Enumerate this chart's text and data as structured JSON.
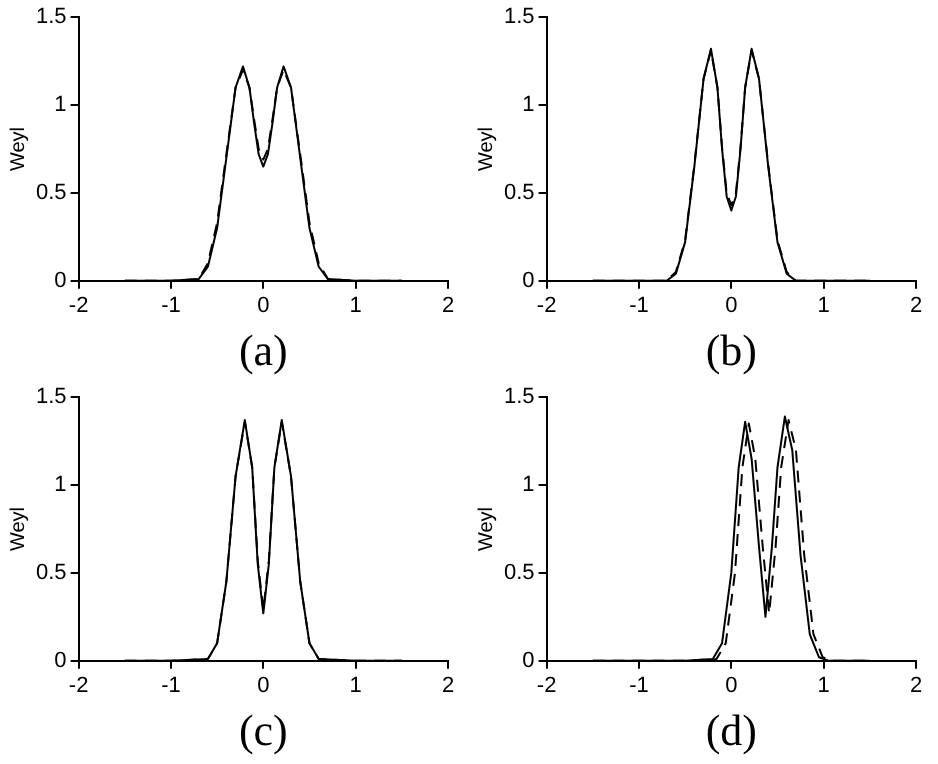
{
  "chart_data": [
    {
      "type": "line",
      "xlabel": "(a)",
      "ylabel": "Weyl",
      "xlim": [
        -2,
        2
      ],
      "ylim": [
        0,
        1.5
      ],
      "xticks": [
        -2,
        -1,
        0,
        1,
        2
      ],
      "yticks": [
        0,
        0.5,
        1,
        1.5
      ],
      "grid": false,
      "legend": false,
      "marker": "none",
      "series": [
        {
          "color": "#000000",
          "line_style": "solid",
          "x": [
            -1.5,
            -1,
            -0.7,
            -0.6,
            -0.5,
            -0.4,
            -0.3,
            -0.22,
            -0.15,
            -0.1,
            -0.05,
            0,
            0.05,
            0.1,
            0.15,
            0.22,
            0.3,
            0.4,
            0.5,
            0.6,
            0.7,
            1,
            1.5
          ],
          "values": [
            0,
            0,
            0.01,
            0.08,
            0.3,
            0.7,
            1.1,
            1.22,
            1.1,
            0.9,
            0.72,
            0.65,
            0.72,
            0.9,
            1.1,
            1.22,
            1.1,
            0.7,
            0.3,
            0.08,
            0.01,
            0,
            0
          ]
        },
        {
          "color": "#000000",
          "line_style": "dashed",
          "x": [
            -1.5,
            -1,
            -0.7,
            -0.6,
            -0.5,
            -0.4,
            -0.3,
            -0.22,
            -0.15,
            -0.1,
            -0.05,
            0,
            0.05,
            0.1,
            0.15,
            0.22,
            0.3,
            0.4,
            0.5,
            0.6,
            0.7,
            1,
            1.5
          ],
          "values": [
            0,
            0,
            0.01,
            0.1,
            0.33,
            0.72,
            1.1,
            1.2,
            1.1,
            0.92,
            0.75,
            0.69,
            0.75,
            0.92,
            1.1,
            1.2,
            1.1,
            0.72,
            0.33,
            0.1,
            0.01,
            0,
            0
          ]
        }
      ]
    },
    {
      "type": "line",
      "xlabel": "(b)",
      "ylabel": "Weyl",
      "xlim": [
        -2,
        2
      ],
      "ylim": [
        0,
        1.5
      ],
      "xticks": [
        -2,
        -1,
        0,
        1,
        2
      ],
      "yticks": [
        0,
        0.5,
        1,
        1.5
      ],
      "grid": false,
      "legend": false,
      "marker": "none",
      "series": [
        {
          "color": "#000000",
          "line_style": "solid",
          "x": [
            -1.5,
            -1,
            -0.7,
            -0.6,
            -0.5,
            -0.4,
            -0.3,
            -0.22,
            -0.15,
            -0.1,
            -0.05,
            0,
            0.05,
            0.1,
            0.15,
            0.22,
            0.3,
            0.4,
            0.5,
            0.6,
            0.7,
            1,
            1.5
          ],
          "values": [
            0,
            0,
            0,
            0.04,
            0.22,
            0.65,
            1.15,
            1.32,
            1.1,
            0.75,
            0.48,
            0.4,
            0.48,
            0.75,
            1.1,
            1.32,
            1.15,
            0.65,
            0.22,
            0.04,
            0,
            0,
            0
          ]
        },
        {
          "color": "#000000",
          "line_style": "dashed",
          "x": [
            -1.5,
            -1,
            -0.7,
            -0.6,
            -0.5,
            -0.4,
            -0.3,
            -0.22,
            -0.15,
            -0.1,
            -0.05,
            0,
            0.05,
            0.1,
            0.15,
            0.22,
            0.3,
            0.4,
            0.5,
            0.6,
            0.7,
            1,
            1.5
          ],
          "values": [
            0,
            0,
            0,
            0.05,
            0.23,
            0.66,
            1.15,
            1.31,
            1.1,
            0.76,
            0.5,
            0.43,
            0.5,
            0.76,
            1.1,
            1.31,
            1.15,
            0.66,
            0.23,
            0.05,
            0,
            0,
            0
          ]
        }
      ]
    },
    {
      "type": "line",
      "xlabel": "(c)",
      "ylabel": "Weyl",
      "xlim": [
        -2,
        2
      ],
      "ylim": [
        0,
        1.5
      ],
      "xticks": [
        -2,
        -1,
        0,
        1,
        2
      ],
      "yticks": [
        0,
        0.5,
        1,
        1.5
      ],
      "grid": false,
      "legend": false,
      "marker": "none",
      "series": [
        {
          "color": "#000000",
          "line_style": "solid",
          "x": [
            -1.5,
            -1,
            -0.6,
            -0.5,
            -0.4,
            -0.3,
            -0.2,
            -0.12,
            -0.06,
            0,
            0.06,
            0.12,
            0.2,
            0.3,
            0.4,
            0.5,
            0.6,
            1,
            1.5
          ],
          "values": [
            0,
            0,
            0.01,
            0.1,
            0.45,
            1.05,
            1.37,
            1.1,
            0.55,
            0.27,
            0.55,
            1.1,
            1.37,
            1.05,
            0.45,
            0.1,
            0.01,
            0,
            0
          ]
        },
        {
          "color": "#000000",
          "line_style": "dashed",
          "x": [
            -1.5,
            -1,
            -0.6,
            -0.5,
            -0.4,
            -0.3,
            -0.2,
            -0.12,
            -0.06,
            0,
            0.06,
            0.12,
            0.2,
            0.3,
            0.4,
            0.5,
            0.6,
            1,
            1.5
          ],
          "values": [
            0,
            0,
            0.01,
            0.1,
            0.45,
            1.05,
            1.36,
            1.1,
            0.57,
            0.29,
            0.57,
            1.1,
            1.36,
            1.05,
            0.45,
            0.1,
            0.01,
            0,
            0
          ]
        }
      ]
    },
    {
      "type": "line",
      "xlabel": "(d)",
      "ylabel": "Weyl",
      "xlim": [
        -2,
        2
      ],
      "ylim": [
        0,
        1.5
      ],
      "xticks": [
        -2,
        -1,
        0,
        1,
        2
      ],
      "yticks": [
        0,
        0.5,
        1,
        1.5
      ],
      "grid": false,
      "legend": false,
      "marker": "none",
      "series": [
        {
          "color": "#000000",
          "line_style": "solid",
          "x": [
            -1.5,
            -0.5,
            -0.2,
            -0.1,
            0,
            0.08,
            0.15,
            0.22,
            0.3,
            0.37,
            0.44,
            0.5,
            0.58,
            0.66,
            0.75,
            0.85,
            0.95,
            1.05,
            1.5
          ],
          "values": [
            0,
            0,
            0.01,
            0.1,
            0.5,
            1.1,
            1.36,
            1.15,
            0.65,
            0.25,
            0.65,
            1.1,
            1.39,
            1.2,
            0.6,
            0.15,
            0.02,
            0,
            0
          ]
        },
        {
          "color": "#000000",
          "line_style": "dashed",
          "x": [
            -1.5,
            -0.5,
            -0.16,
            -0.06,
            0.04,
            0.12,
            0.19,
            0.26,
            0.34,
            0.41,
            0.48,
            0.54,
            0.62,
            0.7,
            0.79,
            0.89,
            0.99,
            1.09,
            1.5
          ],
          "values": [
            0,
            0,
            0.01,
            0.1,
            0.5,
            1.1,
            1.35,
            1.15,
            0.65,
            0.27,
            0.65,
            1.1,
            1.37,
            1.2,
            0.6,
            0.15,
            0.02,
            0,
            0
          ]
        }
      ]
    }
  ]
}
